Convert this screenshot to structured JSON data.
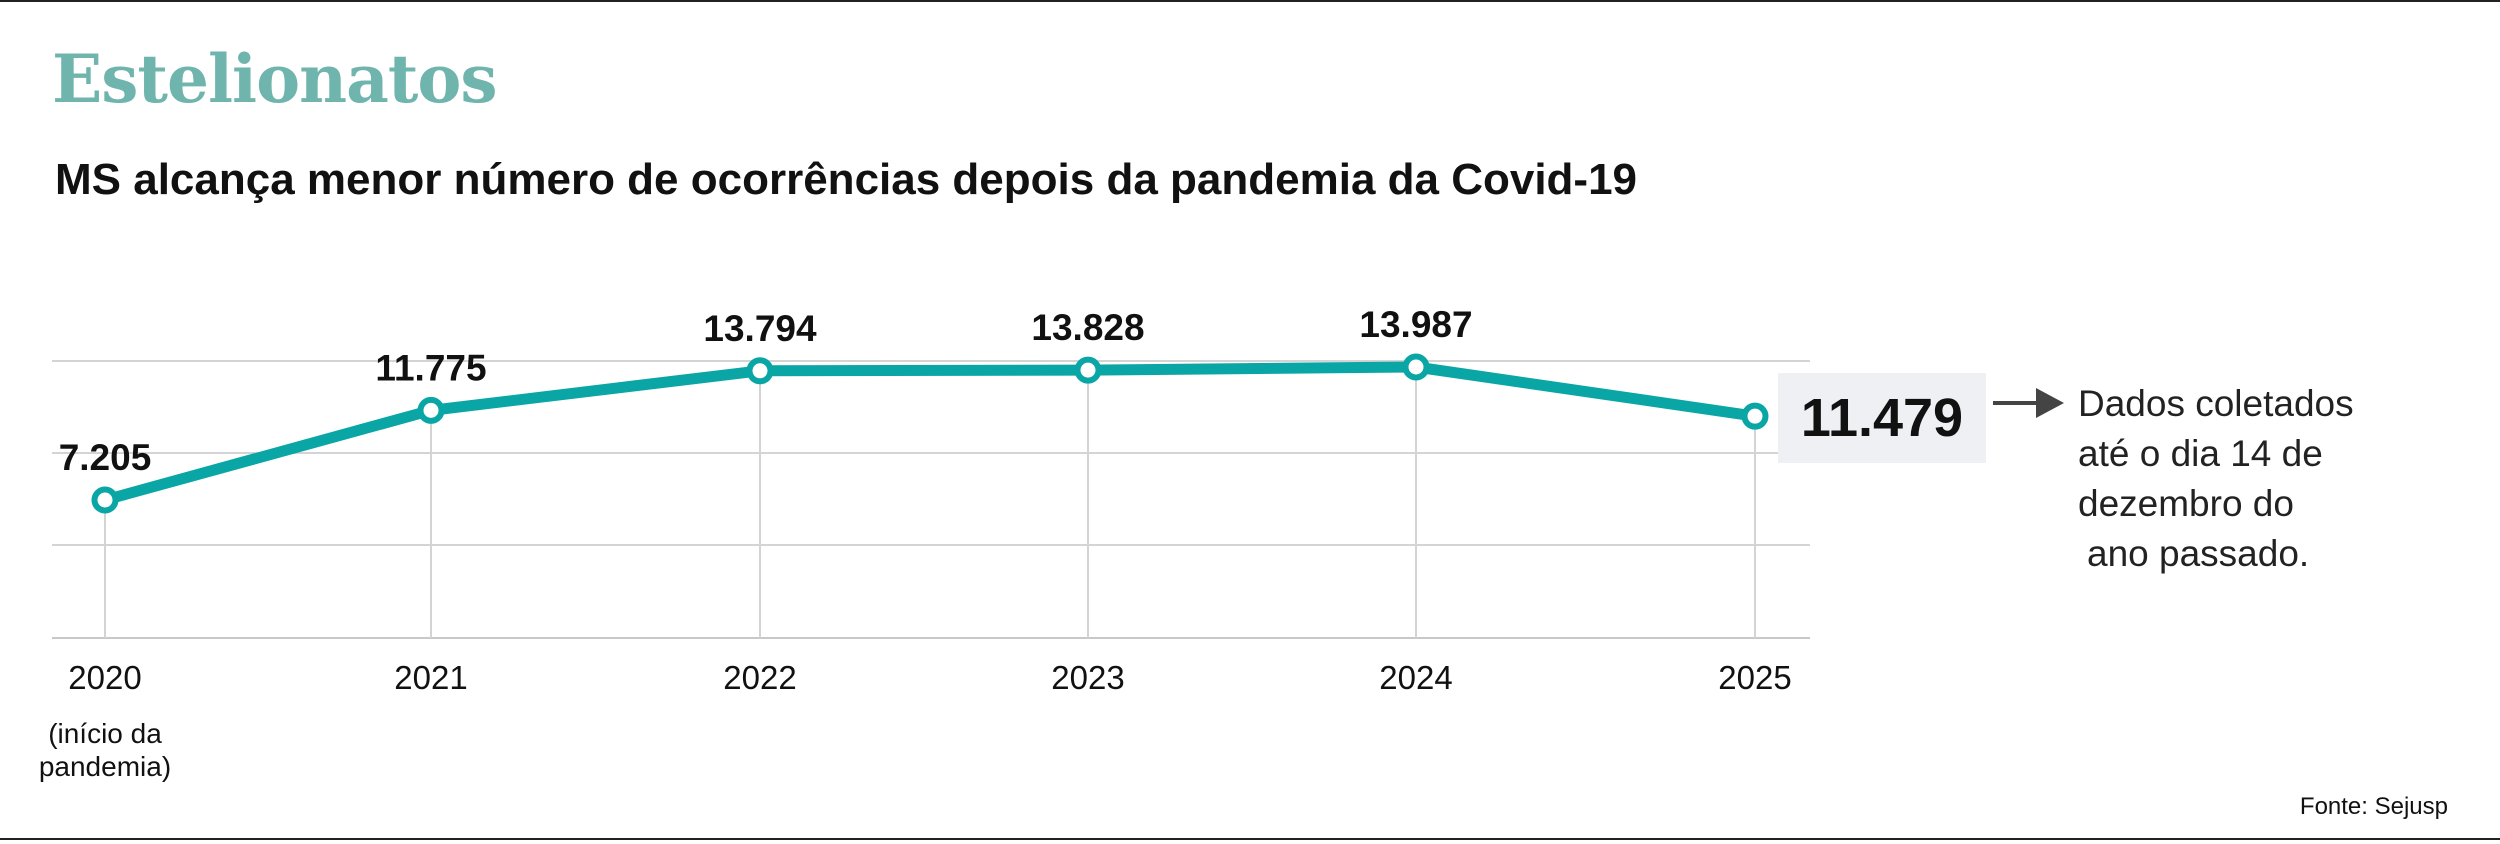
{
  "header": {
    "kicker": "Estelionatos",
    "title": "MS alcança menor número de ocorrências depois da pandemia da Covid-19"
  },
  "chart_data": {
    "type": "line",
    "x": [
      "2020",
      "2021",
      "2022",
      "2023",
      "2024",
      "2025"
    ],
    "x_tick_labels": [
      [
        "2020",
        "(início da",
        "pandemia)"
      ],
      [
        "2021"
      ],
      [
        "2022"
      ],
      [
        "2023"
      ],
      [
        "2024"
      ],
      [
        "2025"
      ]
    ],
    "series": [
      {
        "values": [
          7205,
          11775,
          13794,
          13828,
          13987,
          11479
        ],
        "data_labels": [
          "7.205",
          "11.775",
          "13.794",
          "13.828",
          "13.987",
          "11.479"
        ]
      }
    ],
    "highlight_index": 5,
    "annotation": [
      "Dados coletados",
      "até o dia 14 de",
      "dezembro do",
      "ano passado."
    ],
    "title": "",
    "xlabel": "",
    "ylabel": "",
    "ylim": [
      0,
      14000
    ],
    "grid": true,
    "colors": {
      "line": "#0aa6a6",
      "highlight_bg": "#eef0f4",
      "grid": "#d4d4d4",
      "arrow": "#444444",
      "kicker": "#6fb5ad"
    }
  },
  "footer": {
    "source": "Fonte: Sejusp"
  }
}
